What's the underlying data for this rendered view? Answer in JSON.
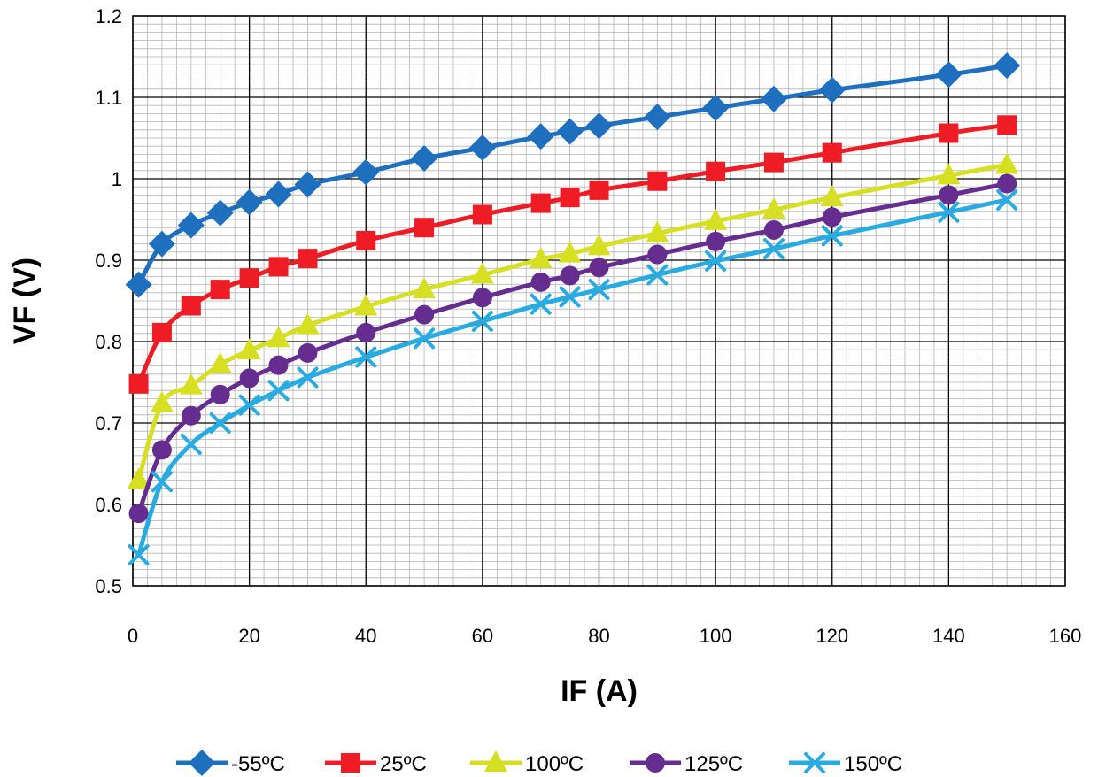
{
  "chart_data": {
    "type": "line",
    "title": "",
    "xlabel": "IF (A)",
    "ylabel": "VF (V)",
    "xlim": [
      0,
      160
    ],
    "ylim": [
      0.5,
      1.2
    ],
    "xticks": [
      0,
      20,
      40,
      60,
      80,
      100,
      120,
      140,
      160
    ],
    "yticks": [
      0.5,
      0.6,
      0.7,
      0.8,
      0.9,
      1.0,
      1.1,
      1.2
    ],
    "xtick_labels": [
      "0",
      "20",
      "40",
      "60",
      "80",
      "100",
      "120",
      "140",
      "160"
    ],
    "ytick_labels": [
      "0.5",
      "0.6",
      "0.7",
      "0.8",
      "0.9",
      "1",
      "1.1",
      "1.2"
    ],
    "grid": true,
    "legend_position": "bottom",
    "series": [
      {
        "name": "-55ºC",
        "color": "#1f6fbf",
        "marker": "diamond",
        "x": [
          1,
          5,
          10,
          15,
          20,
          25,
          30,
          40,
          50,
          60,
          70,
          75,
          80,
          90,
          100,
          110,
          120,
          140,
          150
        ],
        "y": [
          0.87,
          0.92,
          0.943,
          0.958,
          0.971,
          0.981,
          0.993,
          1.008,
          1.025,
          1.038,
          1.052,
          1.058,
          1.065,
          1.076,
          1.087,
          1.098,
          1.109,
          1.128,
          1.139
        ]
      },
      {
        "name": "25ºC",
        "color": "#ee1c25",
        "marker": "square",
        "x": [
          1,
          5,
          10,
          15,
          20,
          25,
          30,
          40,
          50,
          60,
          70,
          75,
          80,
          90,
          100,
          110,
          120,
          140,
          150
        ],
        "y": [
          0.748,
          0.811,
          0.844,
          0.864,
          0.878,
          0.892,
          0.902,
          0.924,
          0.94,
          0.956,
          0.97,
          0.977,
          0.986,
          0.997,
          1.009,
          1.02,
          1.032,
          1.056,
          1.066
        ]
      },
      {
        "name": "100ºC",
        "color": "#d7df23",
        "marker": "triangle",
        "x": [
          1,
          5,
          10,
          15,
          20,
          25,
          30,
          40,
          50,
          60,
          70,
          75,
          80,
          90,
          100,
          110,
          120,
          140,
          150
        ],
        "y": [
          0.63,
          0.724,
          0.746,
          0.772,
          0.789,
          0.804,
          0.82,
          0.843,
          0.864,
          0.882,
          0.901,
          0.908,
          0.917,
          0.933,
          0.948,
          0.962,
          0.977,
          1.004,
          1.017
        ]
      },
      {
        "name": "125ºC",
        "color": "#662d91",
        "marker": "circle",
        "x": [
          1,
          5,
          10,
          15,
          20,
          25,
          30,
          40,
          50,
          60,
          70,
          75,
          80,
          90,
          100,
          110,
          120,
          140,
          150
        ],
        "y": [
          0.589,
          0.667,
          0.709,
          0.735,
          0.755,
          0.771,
          0.786,
          0.811,
          0.833,
          0.854,
          0.873,
          0.881,
          0.891,
          0.907,
          0.923,
          0.937,
          0.953,
          0.98,
          0.994
        ]
      },
      {
        "name": "150ºC",
        "color": "#29abe2",
        "marker": "x",
        "x": [
          1,
          5,
          10,
          15,
          20,
          25,
          30,
          40,
          50,
          60,
          70,
          75,
          80,
          90,
          100,
          110,
          120,
          140,
          150
        ],
        "y": [
          0.538,
          0.628,
          0.674,
          0.7,
          0.722,
          0.74,
          0.756,
          0.781,
          0.804,
          0.825,
          0.846,
          0.855,
          0.864,
          0.882,
          0.899,
          0.914,
          0.93,
          0.959,
          0.974
        ]
      }
    ]
  }
}
